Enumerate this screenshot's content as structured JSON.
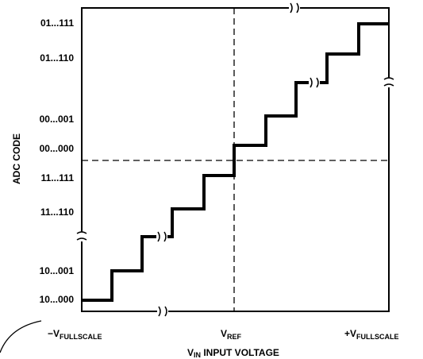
{
  "diagram": {
    "y_axis_title": "ADC CODE",
    "y_labels": [
      "01...111",
      "01...110",
      "00...001",
      "00...000",
      "11...111",
      "11...110",
      "10...001",
      "10...000"
    ],
    "x_labels": [
      {
        "main": "−V",
        "sub": "FULLSCALE"
      },
      {
        "main": "V",
        "sub": "REF"
      },
      {
        "main": "+V",
        "sub": "FULLSCALE"
      }
    ],
    "x_axis_title": {
      "main": "V",
      "sub": "IN",
      "rest": " INPUT VOLTAGE"
    }
  }
}
